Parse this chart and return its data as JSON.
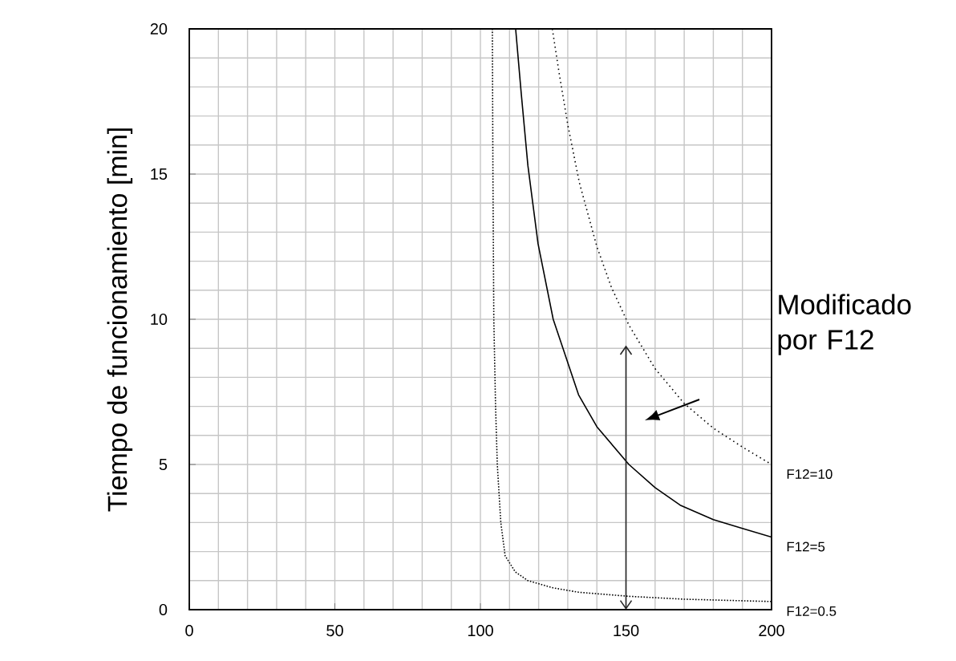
{
  "chart_data": {
    "type": "line",
    "ylabel": "Tiempo de funcionamiento [min]",
    "xlim": [
      0,
      200
    ],
    "ylim": [
      0,
      20
    ],
    "xticks": [
      0,
      50,
      100,
      150,
      200
    ],
    "yticks": [
      0,
      5,
      10,
      15,
      20
    ],
    "grid": true,
    "marker": "none",
    "annotations": [
      "Modificado por F12"
    ],
    "series": [
      {
        "name": "F12=10",
        "color": "#000000",
        "line_style": "dotted",
        "x": [
          124.7,
          127,
          130,
          134,
          140,
          145,
          151,
          160,
          170,
          180,
          190,
          200
        ],
        "values": [
          20,
          18.5,
          16.7,
          14.7,
          12.5,
          11.1,
          9.8,
          8.3,
          7.1,
          6.25,
          5.6,
          5.0
        ]
      },
      {
        "name": "F12=5",
        "color": "#000000",
        "line_style": "solid",
        "x": [
          112.1,
          114,
          116.3,
          119.8,
          125,
          133.7,
          140,
          151,
          160,
          168.6,
          180,
          190,
          200
        ],
        "values": [
          20,
          17.8,
          15.3,
          12.6,
          10.0,
          7.4,
          6.3,
          5.0,
          4.2,
          3.6,
          3.1,
          2.8,
          2.5
        ]
      },
      {
        "name": "F12=0.5",
        "color": "#000000",
        "line_style": "dotted",
        "x": [
          104.1,
          104.3,
          104.6,
          105.2,
          105.8,
          107,
          108.5,
          112,
          116.3,
          125,
          133.7,
          151,
          170,
          200
        ],
        "values": [
          20,
          15,
          10,
          7,
          5,
          3,
          1.85,
          1.3,
          1.0,
          0.75,
          0.6,
          0.46,
          0.36,
          0.28
        ]
      }
    ]
  }
}
